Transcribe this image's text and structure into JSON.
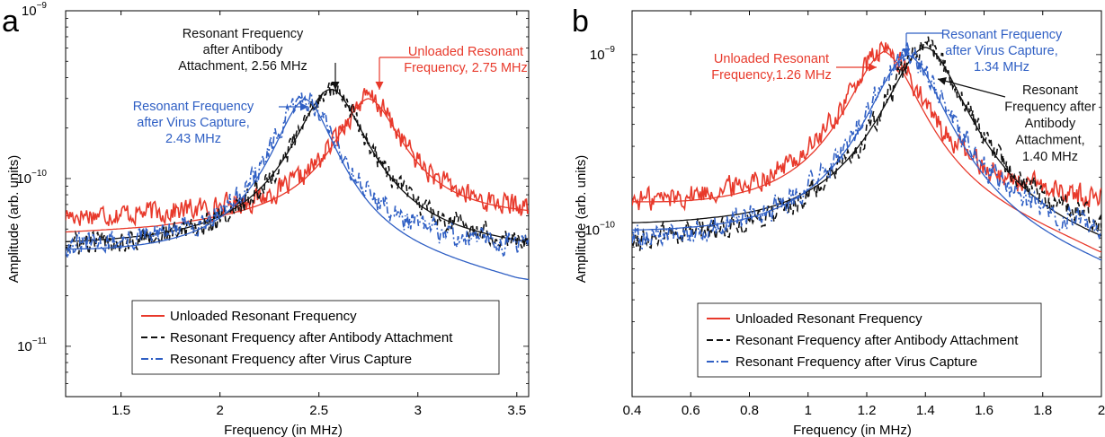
{
  "colors": {
    "unloaded": "#e8392b",
    "antibody": "#111111",
    "virus": "#2f5fc4"
  },
  "chart_data": [
    {
      "panel": "a",
      "type": "line",
      "xlabel": "Frequency (in MHz)",
      "ylabel": "Amplitude (arb. units)",
      "xlim": [
        1.22,
        3.56
      ],
      "ylim_log10": [
        -11.3,
        -9
      ],
      "y_log_scale": true,
      "xticks": [
        1.5,
        2,
        2.5,
        3,
        3.5
      ],
      "yticks": [
        {
          "label": "10",
          "exp": "−9",
          "value": -9
        },
        {
          "label": "10",
          "exp": "−10",
          "value": -10
        },
        {
          "label": "10",
          "exp": "−11",
          "value": -11
        }
      ],
      "legend_position": "lower-center",
      "series": [
        {
          "name": "Unloaded Resonant Frequency",
          "color": "#e8392b",
          "style": "solid",
          "f0": 2.75,
          "peak": 3e-10,
          "floor": 5.8e-11,
          "gamma": 0.16,
          "fit_left": 4.8e-11,
          "fit_right": 6.4e-11
        },
        {
          "name": "Resonant Frequency after Antibody Attachment",
          "color": "#111111",
          "style": "dashed",
          "f0": 2.56,
          "peak": 3.4e-10,
          "floor": 3.6e-11,
          "gamma": 0.16,
          "fit_left": 4.2e-11,
          "fit_right": 4.2e-11
        },
        {
          "name": "Resonant Frequency after Virus Capture",
          "color": "#2f5fc4",
          "style": "dashdot",
          "f0": 2.43,
          "peak": 3e-10,
          "floor": 3.6e-11,
          "gamma": 0.15,
          "fit_left": 3.8e-11,
          "fit_right": 2.5e-11
        }
      ],
      "annotations": [
        {
          "lines": [
            "Resonant Frequency",
            "after Antibody",
            "Attachment, 2.56 MHz"
          ],
          "color": "#111111"
        },
        {
          "lines": [
            "Unloaded Resonant",
            "Frequency, 2.75 MHz"
          ],
          "color": "#e8392b"
        },
        {
          "lines": [
            "Resonant Frequency",
            "after Virus Capture,",
            "2.43 MHz"
          ],
          "color": "#2f5fc4"
        }
      ]
    },
    {
      "panel": "b",
      "type": "line",
      "xlabel": "Frequency (in MHz)",
      "ylabel": "Amplitude (arb. units)",
      "xlim": [
        0.4,
        2.0
      ],
      "ylim_log10": [
        -10.95,
        -8.75
      ],
      "y_log_scale": true,
      "xticks": [
        0.4,
        0.6,
        0.8,
        1,
        1.2,
        1.4,
        1.6,
        1.8,
        2
      ],
      "yticks": [
        {
          "label": "10",
          "exp": "−9",
          "value": -9
        },
        {
          "label": "10",
          "exp": "−10",
          "value": -10
        }
      ],
      "legend_position": "lower-center",
      "series": [
        {
          "name": "Unloaded Resonant Frequency",
          "color": "#e8392b",
          "style": "solid",
          "f0": 1.26,
          "peak": 1.05e-09,
          "floor": 1.3e-10,
          "gamma": 0.12,
          "fit_left": 1.45e-10,
          "fit_right": 7.5e-11
        },
        {
          "name": "Resonant Frequency after Antibody Attachment",
          "color": "#111111",
          "style": "dashed",
          "f0": 1.4,
          "peak": 1.1e-09,
          "floor": 7.5e-11,
          "gamma": 0.12,
          "fit_left": 1.1e-10,
          "fit_right": 9e-11
        },
        {
          "name": "Resonant Frequency after Virus Capture",
          "color": "#2f5fc4",
          "style": "dashdot",
          "f0": 1.34,
          "peak": 1e-09,
          "floor": 7.5e-11,
          "gamma": 0.12,
          "fit_left": 1e-10,
          "fit_right": 6.5e-11
        }
      ],
      "annotations": [
        {
          "lines": [
            "Unloaded Resonant",
            "Frequency,1.26 MHz"
          ],
          "color": "#e8392b"
        },
        {
          "lines": [
            "Resonant Frequency",
            "after Virus Capture,",
            "1.34 MHz"
          ],
          "color": "#2f5fc4"
        },
        {
          "lines": [
            "Resonant",
            "Frequency after",
            "Antibody",
            "Attachment,",
            "1.40 MHz"
          ],
          "color": "#111111"
        }
      ]
    }
  ]
}
